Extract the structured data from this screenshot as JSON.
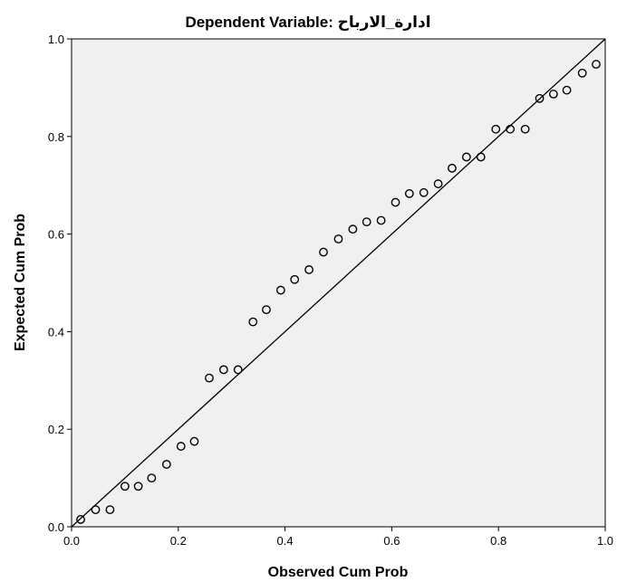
{
  "chart_data": {
    "type": "scatter",
    "title": "Dependent Variable: ادارة_الارباح",
    "xlabel": "Observed Cum Prob",
    "ylabel": "Expected Cum Prob",
    "xlim": [
      0,
      1
    ],
    "ylim": [
      0,
      1
    ],
    "x_ticks": [
      "0.0",
      "0.2",
      "0.4",
      "0.6",
      "0.8",
      "1.0"
    ],
    "y_ticks": [
      "0.0",
      "0.2",
      "0.4",
      "0.6",
      "0.8",
      "1.0"
    ],
    "grid": false,
    "reference_line": {
      "from": [
        0,
        0
      ],
      "to": [
        1,
        1
      ]
    },
    "plot_background": "#f0f0f0",
    "point_color": "#000000",
    "points": [
      [
        0.017,
        0.015
      ],
      [
        0.045,
        0.035
      ],
      [
        0.072,
        0.035
      ],
      [
        0.1,
        0.083
      ],
      [
        0.125,
        0.083
      ],
      [
        0.15,
        0.1
      ],
      [
        0.178,
        0.128
      ],
      [
        0.205,
        0.165
      ],
      [
        0.23,
        0.175
      ],
      [
        0.258,
        0.305
      ],
      [
        0.285,
        0.322
      ],
      [
        0.312,
        0.322
      ],
      [
        0.34,
        0.42
      ],
      [
        0.365,
        0.445
      ],
      [
        0.392,
        0.485
      ],
      [
        0.418,
        0.507
      ],
      [
        0.445,
        0.527
      ],
      [
        0.472,
        0.563
      ],
      [
        0.5,
        0.59
      ],
      [
        0.527,
        0.61
      ],
      [
        0.553,
        0.625
      ],
      [
        0.58,
        0.628
      ],
      [
        0.607,
        0.665
      ],
      [
        0.633,
        0.683
      ],
      [
        0.66,
        0.685
      ],
      [
        0.687,
        0.703
      ],
      [
        0.713,
        0.735
      ],
      [
        0.74,
        0.758
      ],
      [
        0.767,
        0.758
      ],
      [
        0.795,
        0.815
      ],
      [
        0.822,
        0.815
      ],
      [
        0.85,
        0.815
      ],
      [
        0.877,
        0.878
      ],
      [
        0.903,
        0.887
      ],
      [
        0.928,
        0.895
      ],
      [
        0.957,
        0.93
      ],
      [
        0.983,
        0.948
      ]
    ]
  }
}
